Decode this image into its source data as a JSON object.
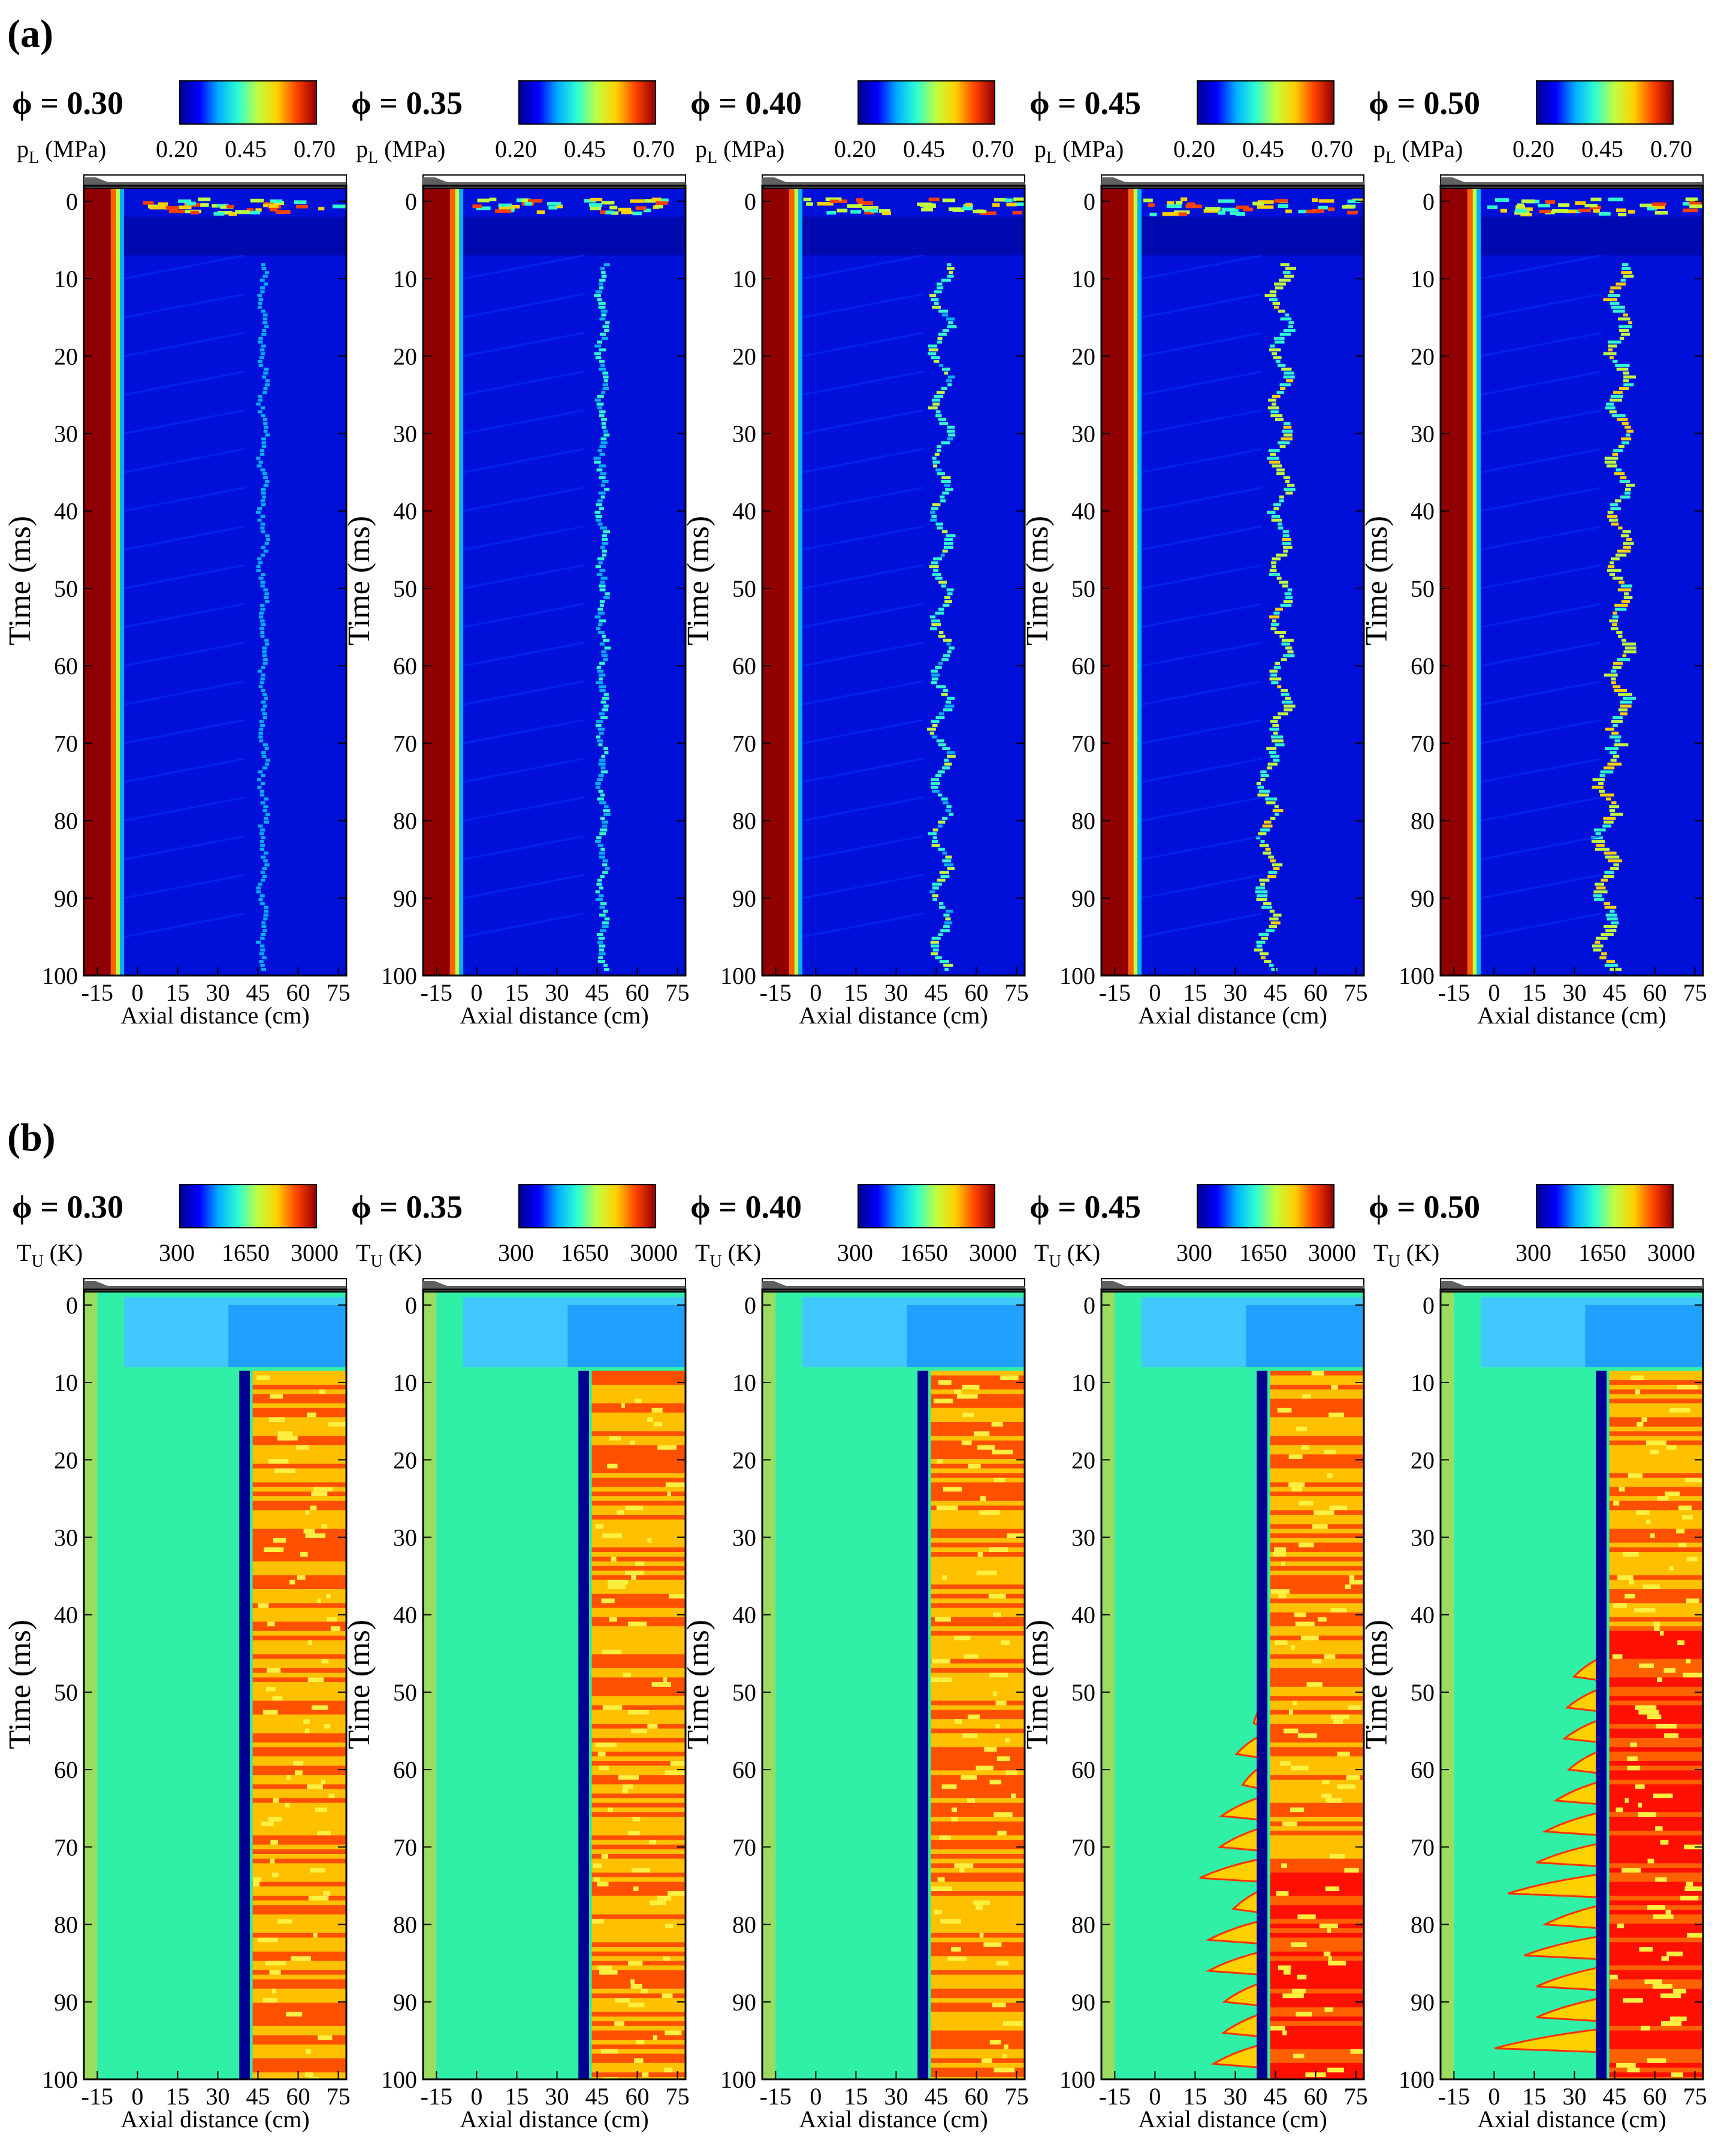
{
  "figure": {
    "panels": [
      {
        "id": "a",
        "label": "(a)"
      },
      {
        "id": "b",
        "label": "(b)"
      }
    ]
  },
  "chart_data": [
    {
      "type": "heatmap",
      "panel": "a",
      "phi_label": "ϕ = 0.30",
      "variable_label": "p",
      "variable_sub": "L",
      "variable_unit": " (MPa)",
      "colorbar_ticks": [
        "0.20",
        "0.45",
        "0.70"
      ],
      "xlabel": "Axial distance (cm)",
      "ylabel": "Time (ms)",
      "xticks": [
        "-15",
        "0",
        "15",
        "30",
        "45",
        "60",
        "75"
      ],
      "yticks": [
        "0",
        "10",
        "20",
        "30",
        "40",
        "50",
        "60",
        "70",
        "80",
        "90",
        "100"
      ],
      "xlim": [
        -20,
        78
      ],
      "ylim": [
        100,
        -2
      ],
      "colormap": [
        "#00008f",
        "#0000ff",
        "#00b0ff",
        "#30ffcf",
        "#c0ff40",
        "#ffd000",
        "#ff4000",
        "#900000"
      ]
    },
    {
      "type": "heatmap",
      "panel": "a",
      "phi_label": "ϕ = 0.35",
      "variable_label": "p",
      "variable_sub": "L",
      "variable_unit": " (MPa)",
      "colorbar_ticks": [
        "0.20",
        "0.45",
        "0.70"
      ],
      "xlabel": "Axial distance (cm)",
      "ylabel": "Time (ms)",
      "xticks": [
        "-15",
        "0",
        "15",
        "30",
        "45",
        "60",
        "75"
      ],
      "yticks": [
        "0",
        "10",
        "20",
        "30",
        "40",
        "50",
        "60",
        "70",
        "80",
        "90",
        "100"
      ],
      "xlim": [
        -20,
        78
      ],
      "ylim": [
        100,
        -2
      ],
      "colormap": [
        "#00008f",
        "#0000ff",
        "#00b0ff",
        "#30ffcf",
        "#c0ff40",
        "#ffd000",
        "#ff4000",
        "#900000"
      ]
    },
    {
      "type": "heatmap",
      "panel": "a",
      "phi_label": "ϕ = 0.40",
      "variable_label": "p",
      "variable_sub": "L",
      "variable_unit": " (MPa)",
      "colorbar_ticks": [
        "0.20",
        "0.45",
        "0.70"
      ],
      "xlabel": "Axial distance (cm)",
      "ylabel": "Time (ms)",
      "xticks": [
        "-15",
        "0",
        "15",
        "30",
        "45",
        "60",
        "75"
      ],
      "yticks": [
        "0",
        "10",
        "20",
        "30",
        "40",
        "50",
        "60",
        "70",
        "80",
        "90",
        "100"
      ],
      "xlim": [
        -20,
        78
      ],
      "ylim": [
        100,
        -2
      ],
      "colormap": [
        "#00008f",
        "#0000ff",
        "#00b0ff",
        "#30ffcf",
        "#c0ff40",
        "#ffd000",
        "#ff4000",
        "#900000"
      ]
    },
    {
      "type": "heatmap",
      "panel": "a",
      "phi_label": "ϕ = 0.45",
      "variable_label": "p",
      "variable_sub": "L",
      "variable_unit": " (MPa)",
      "colorbar_ticks": [
        "0.20",
        "0.45",
        "0.70"
      ],
      "xlabel": "Axial distance (cm)",
      "ylabel": "Time (ms)",
      "xticks": [
        "-15",
        "0",
        "15",
        "30",
        "45",
        "60",
        "75"
      ],
      "yticks": [
        "0",
        "10",
        "20",
        "30",
        "40",
        "50",
        "60",
        "70",
        "80",
        "90",
        "100"
      ],
      "xlim": [
        -20,
        78
      ],
      "ylim": [
        100,
        -2
      ],
      "colormap": [
        "#00008f",
        "#0000ff",
        "#00b0ff",
        "#30ffcf",
        "#c0ff40",
        "#ffd000",
        "#ff4000",
        "#900000"
      ]
    },
    {
      "type": "heatmap",
      "panel": "a",
      "phi_label": "ϕ = 0.50",
      "variable_label": "p",
      "variable_sub": "L",
      "variable_unit": " (MPa)",
      "colorbar_ticks": [
        "0.20",
        "0.45",
        "0.70"
      ],
      "xlabel": "Axial distance (cm)",
      "ylabel": "Time (ms)",
      "xticks": [
        "-15",
        "0",
        "15",
        "30",
        "45",
        "60",
        "75"
      ],
      "yticks": [
        "0",
        "10",
        "20",
        "30",
        "40",
        "50",
        "60",
        "70",
        "80",
        "90",
        "100"
      ],
      "xlim": [
        -20,
        78
      ],
      "ylim": [
        100,
        -2
      ],
      "colormap": [
        "#00008f",
        "#0000ff",
        "#00b0ff",
        "#30ffcf",
        "#c0ff40",
        "#ffd000",
        "#ff4000",
        "#900000"
      ]
    },
    {
      "type": "heatmap",
      "panel": "b",
      "phi_label": "ϕ = 0.30",
      "variable_label": "T",
      "variable_sub": "U",
      "variable_unit": " (K)",
      "colorbar_ticks": [
        "300",
        "1650",
        "3000"
      ],
      "xlabel": "Axial distance (cm)",
      "ylabel": "Time (ms)",
      "xticks": [
        "-15",
        "0",
        "15",
        "30",
        "45",
        "60",
        "75"
      ],
      "yticks": [
        "0",
        "10",
        "20",
        "30",
        "40",
        "50",
        "60",
        "70",
        "80",
        "90",
        "100"
      ],
      "xlim": [
        -20,
        78
      ],
      "ylim": [
        100,
        -2
      ],
      "colormap": [
        "#00008f",
        "#0000ff",
        "#00b0ff",
        "#30ffcf",
        "#c0ff40",
        "#ffd000",
        "#ff4000",
        "#900000"
      ]
    },
    {
      "type": "heatmap",
      "panel": "b",
      "phi_label": "ϕ = 0.35",
      "variable_label": "T",
      "variable_sub": "U",
      "variable_unit": " (K)",
      "colorbar_ticks": [
        "300",
        "1650",
        "3000"
      ],
      "xlabel": "Axial distance (cm)",
      "ylabel": "Time (ms)",
      "xticks": [
        "-15",
        "0",
        "15",
        "30",
        "45",
        "60",
        "75"
      ],
      "yticks": [
        "0",
        "10",
        "20",
        "30",
        "40",
        "50",
        "60",
        "70",
        "80",
        "90",
        "100"
      ],
      "xlim": [
        -20,
        78
      ],
      "ylim": [
        100,
        -2
      ],
      "colormap": [
        "#00008f",
        "#0000ff",
        "#00b0ff",
        "#30ffcf",
        "#c0ff40",
        "#ffd000",
        "#ff4000",
        "#900000"
      ]
    },
    {
      "type": "heatmap",
      "panel": "b",
      "phi_label": "ϕ = 0.40",
      "variable_label": "T",
      "variable_sub": "U",
      "variable_unit": " (K)",
      "colorbar_ticks": [
        "300",
        "1650",
        "3000"
      ],
      "xlabel": "Axial distance (cm)",
      "ylabel": "Time (ms)",
      "xticks": [
        "-15",
        "0",
        "15",
        "30",
        "45",
        "60",
        "75"
      ],
      "yticks": [
        "0",
        "10",
        "20",
        "30",
        "40",
        "50",
        "60",
        "70",
        "80",
        "90",
        "100"
      ],
      "xlim": [
        -20,
        78
      ],
      "ylim": [
        100,
        -2
      ],
      "colormap": [
        "#00008f",
        "#0000ff",
        "#00b0ff",
        "#30ffcf",
        "#c0ff40",
        "#ffd000",
        "#ff4000",
        "#900000"
      ]
    },
    {
      "type": "heatmap",
      "panel": "b",
      "phi_label": "ϕ = 0.45",
      "variable_label": "T",
      "variable_sub": "U",
      "variable_unit": " (K)",
      "colorbar_ticks": [
        "300",
        "1650",
        "3000"
      ],
      "xlabel": "Axial distance (cm)",
      "ylabel": "Time (ms)",
      "xticks": [
        "-15",
        "0",
        "15",
        "30",
        "45",
        "60",
        "75"
      ],
      "yticks": [
        "0",
        "10",
        "20",
        "30",
        "40",
        "50",
        "60",
        "70",
        "80",
        "90",
        "100"
      ],
      "xlim": [
        -20,
        78
      ],
      "ylim": [
        100,
        -2
      ],
      "colormap": [
        "#00008f",
        "#0000ff",
        "#00b0ff",
        "#30ffcf",
        "#c0ff40",
        "#ffd000",
        "#ff4000",
        "#900000"
      ]
    },
    {
      "type": "heatmap",
      "panel": "b",
      "phi_label": "ϕ = 0.50",
      "variable_label": "T",
      "variable_sub": "U",
      "variable_unit": " (K)",
      "colorbar_ticks": [
        "300",
        "1650",
        "3000"
      ],
      "xlabel": "Axial distance (cm)",
      "ylabel": "Time (ms)",
      "xticks": [
        "-15",
        "0",
        "15",
        "30",
        "45",
        "60",
        "75"
      ],
      "yticks": [
        "0",
        "10",
        "20",
        "30",
        "40",
        "50",
        "60",
        "70",
        "80",
        "90",
        "100"
      ],
      "xlim": [
        -20,
        78
      ],
      "ylim": [
        100,
        -2
      ],
      "colormap": [
        "#00008f",
        "#0000ff",
        "#00b0ff",
        "#30ffcf",
        "#c0ff40",
        "#ffd000",
        "#ff4000",
        "#900000"
      ]
    }
  ]
}
